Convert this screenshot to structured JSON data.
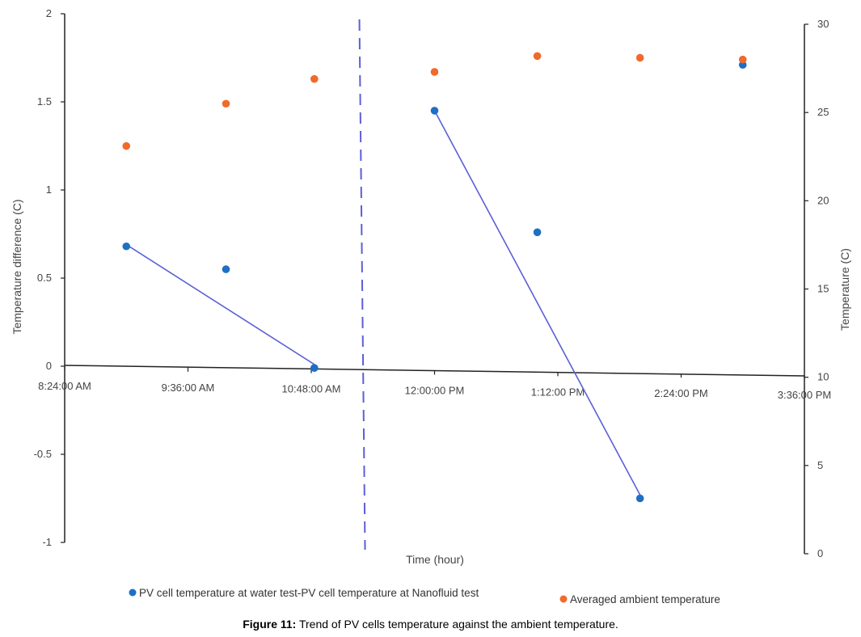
{
  "chart_data": {
    "type": "scatter",
    "title": "",
    "xlabel": "Time (hour)",
    "ylabel_left": "Temperature difference (C)",
    "ylabel_right": "Temperature (C)",
    "x_ticks": [
      "8:24:00 AM",
      "9:36:00 AM",
      "10:48:00 AM",
      "12:00:00 PM",
      "1:12:00 PM",
      "2:24:00 PM",
      "3:36:00 PM"
    ],
    "x_tick_hours": [
      8.4,
      9.6,
      10.8,
      12.0,
      13.2,
      14.4,
      15.6
    ],
    "xlim_hours": [
      8.4,
      15.6
    ],
    "y_left_lim": [
      -1,
      2
    ],
    "y_left_ticks": [
      "-1",
      "-0.5",
      "0",
      "0.5",
      "1",
      "1.5",
      "2"
    ],
    "y_right_lim": [
      0,
      30
    ],
    "y_right_ticks": [
      "0",
      "5",
      "10",
      "15",
      "20",
      "25",
      "30"
    ],
    "separator_x_hour": 11.3,
    "series": [
      {
        "name": "PV cell temperature at water test-PV cell temperature at Nanofluid test",
        "axis": "left",
        "color": "#1f6fc4",
        "x_hours": [
          9.0,
          9.97,
          10.83,
          12.0,
          13.0,
          14.0,
          15.0
        ],
        "values": [
          0.68,
          0.55,
          -0.01,
          1.45,
          0.76,
          -0.75,
          1.71
        ]
      },
      {
        "name": "Averaged ambient temperature",
        "axis": "right",
        "color": "#f06a2a",
        "x_hours": [
          9.0,
          9.97,
          10.83,
          12.0,
          13.0,
          14.0,
          15.0
        ],
        "values": [
          23.1,
          25.5,
          26.9,
          27.3,
          28.2,
          28.1,
          28.0
        ]
      }
    ],
    "trend_lines": [
      {
        "x_hours": [
          9.0,
          10.83
        ],
        "values": [
          0.69,
          0.01
        ],
        "color": "#5b5fd6"
      },
      {
        "x_hours": [
          12.0,
          14.0
        ],
        "values": [
          1.45,
          -0.73
        ],
        "color": "#5b5fd6"
      }
    ],
    "grid": false,
    "legend_position": "bottom"
  },
  "caption": {
    "label": "Figure 11:",
    "text": " Trend of PV cells temperature against the ambient temperature."
  }
}
